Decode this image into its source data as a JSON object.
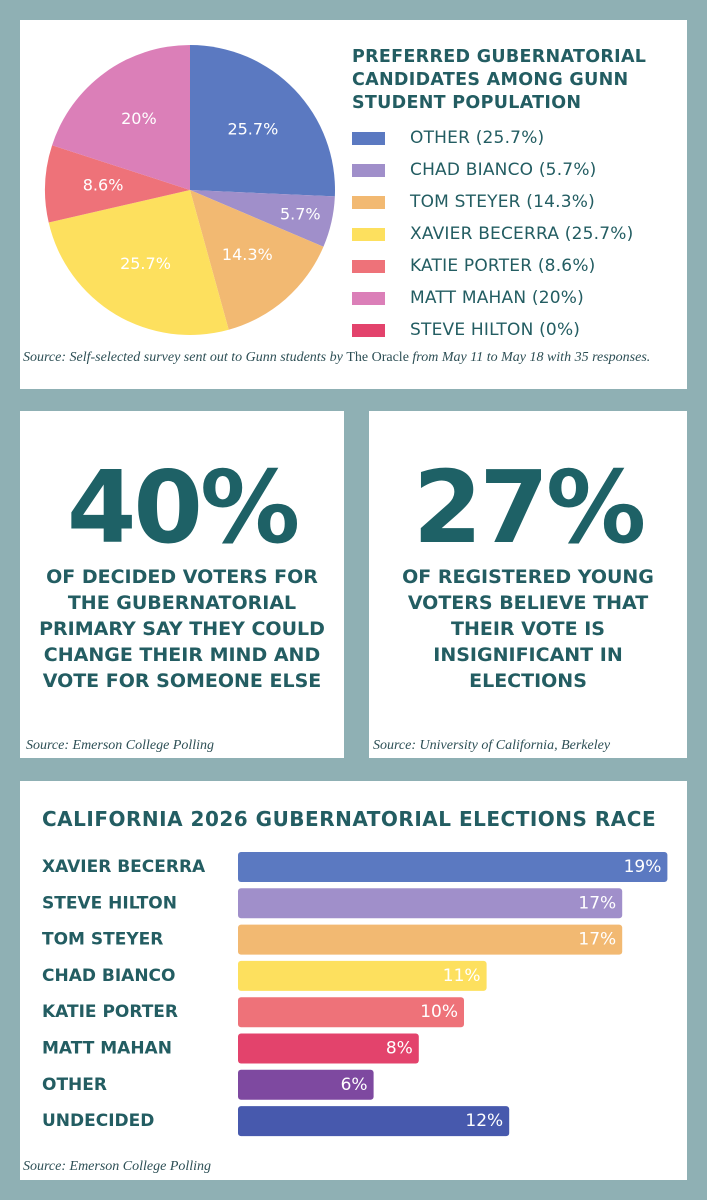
{
  "pie_panel": {
    "title": "PREFERRED GUBERNATORIAL CANDIDATES AMONG GUNN STUDENT POPULATION",
    "source_pre": "Source: Self-selected survey sent out to Gunn students by ",
    "source_pub": "The Oracle",
    "source_post": " from May  11 to May 18 with 35 responses."
  },
  "stat_left": {
    "number": "40%",
    "text": "OF DECIDED VOTERS FOR THE GUBERNATORIAL PRIMARY SAY THEY COULD CHANGE THEIR MIND AND VOTE FOR SOMEONE ELSE",
    "source": "Source: Emerson College Polling"
  },
  "stat_right": {
    "number": "27%",
    "text": "OF REGISTERED YOUNG VOTERS BELIEVE THAT THEIR VOTE IS INSIGNIFICANT IN ELECTIONS",
    "source": "Source: University of California, Berkeley"
  },
  "bar_panel": {
    "title": "CALIFORNIA 2026 GUBERNATORIAL ELECTIONS RACE",
    "source": "Source: Emerson College Polling"
  },
  "chart_data": [
    {
      "type": "pie",
      "title": "PREFERRED GUBERNATORIAL CANDIDATES AMONG GUNN STUDENT POPULATION",
      "legend_position": "right",
      "slices": [
        {
          "name": "OTHER",
          "legend": "OTHER (25.7%)",
          "value": 25.7,
          "label": "25.7%",
          "color": "#5b79c1"
        },
        {
          "name": "CHAD BIANCO",
          "legend": "CHAD BIANCO (5.7%)",
          "value": 5.7,
          "label": "5.7%",
          "color": "#a08fca"
        },
        {
          "name": "TOM STEYER",
          "legend": "TOM STEYER (14.3%)",
          "value": 14.3,
          "label": "14.3%",
          "color": "#f2b972"
        },
        {
          "name": "XAVIER BECERRA",
          "legend": "XAVIER BECERRA (25.7%)",
          "value": 25.7,
          "label": "25.7%",
          "color": "#fde05e"
        },
        {
          "name": "KATIE PORTER",
          "legend": "KATIE PORTER (8.6%)",
          "value": 8.6,
          "label": "8.6%",
          "color": "#ee7279"
        },
        {
          "name": "MATT MAHAN",
          "legend": "MATT MAHAN (20%)",
          "value": 20,
          "label": "20%",
          "color": "#db7fb8"
        },
        {
          "name": "STEVE HILTON",
          "legend": "STEVE HILTON (0%)",
          "value": 0,
          "label": "",
          "color": "#e3436c"
        }
      ]
    },
    {
      "type": "bar",
      "orientation": "horizontal",
      "title": "CALIFORNIA 2026 GUBERNATORIAL ELECTIONS RACE",
      "categories": [
        "XAVIER BECERRA",
        "STEVE HILTON",
        "TOM STEYER",
        "CHAD BIANCO",
        "KATIE PORTER",
        "MATT MAHAN",
        "OTHER",
        "UNDECIDED"
      ],
      "values": [
        19,
        17,
        17,
        11,
        10,
        8,
        6,
        12
      ],
      "labels": [
        "19%",
        "17%",
        "17%",
        "11%",
        "10%",
        "8%",
        "6%",
        "12%"
      ],
      "colors": [
        "#5b79c1",
        "#a08fca",
        "#f2b972",
        "#fde05e",
        "#ee7279",
        "#e3436c",
        "#7e49a0",
        "#4759ad"
      ],
      "grid": false
    }
  ]
}
